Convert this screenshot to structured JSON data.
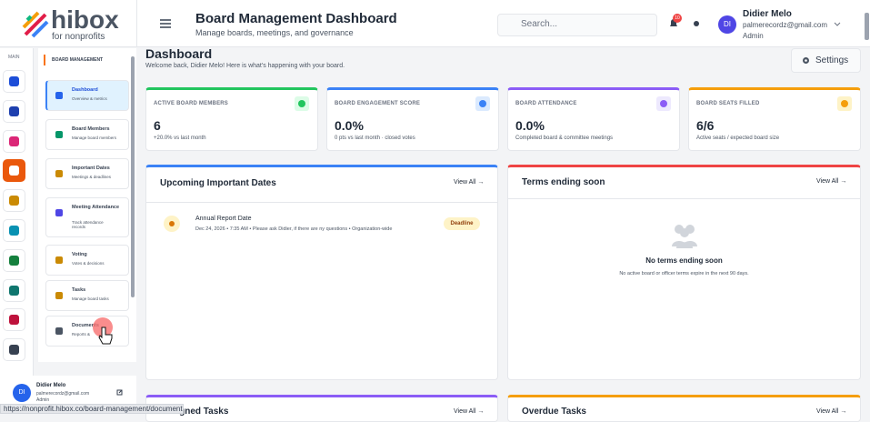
{
  "logo": {
    "name": "hibox",
    "tagline": "for nonprofits"
  },
  "header": {
    "title": "Board Management Dashboard",
    "subtitle": "Manage boards, meetings, and governance",
    "search_placeholder": "Search...",
    "notification_count": "10",
    "user": {
      "initials": "DI",
      "name": "Didier Melo",
      "email": "palmerecordz@gmail.com",
      "role": "Admin"
    }
  },
  "rail": {
    "label": "MAIN"
  },
  "sidebar": {
    "section": "BOARD MANAGEMENT",
    "items": [
      {
        "title": "Dashboard",
        "subtitle": "Overview & metrics"
      },
      {
        "title": "Board Members",
        "subtitle": "Manage board members"
      },
      {
        "title": "Important Dates",
        "subtitle": "Meetings & deadlines"
      },
      {
        "title": "Meeting Attendance",
        "subtitle": "Track attendance records"
      },
      {
        "title": "Voting",
        "subtitle": "Votes & decisions"
      },
      {
        "title": "Tasks",
        "subtitle": "Manage board tasks"
      },
      {
        "title": "Documents",
        "subtitle": "Reports &"
      }
    ],
    "user": {
      "initials": "DI",
      "name": "Didier Melo",
      "email": "palmerecordz@gmail.com",
      "role": "Admin"
    }
  },
  "page": {
    "title": "Dashboard",
    "welcome": "Welcome back, Didier Melo! Here is what's happening with your board.",
    "settings": "Settings"
  },
  "stats": [
    {
      "label": "ACTIVE BOARD MEMBERS",
      "value": "6",
      "note": "+20.0% vs last month"
    },
    {
      "label": "BOARD ENGAGEMENT SCORE",
      "value": "0.0%",
      "note": "0 pts vs last month · closed votes"
    },
    {
      "label": "BOARD ATTENDANCE",
      "value": "0.0%",
      "note": "Completed board & committee meetings"
    },
    {
      "label": "BOARD SEATS FILLED",
      "value": "6/6",
      "note": "Active seats / expected board size"
    }
  ],
  "dates": {
    "title": "Upcoming Important Dates",
    "view_all": "View All →",
    "items": [
      {
        "title": "Annual Report Date",
        "details": "Dec 24, 2026 • 7:35 AM • Please ask Didier, if there are ny questions • Organization-wide",
        "badge": "Deadline"
      }
    ]
  },
  "terms": {
    "title": "Terms ending soon",
    "view_all": "View All →",
    "empty_title": "No terms ending soon",
    "empty_text": "No active board or officer terms expire in the next 90 days."
  },
  "tasks": {
    "title": "Assigned Tasks",
    "view_all": "View All →"
  },
  "overdue": {
    "title": "Overdue Tasks",
    "view_all": "View All →"
  },
  "status_bar": "https://nonprofit.hibox.co/board-management/documents"
}
